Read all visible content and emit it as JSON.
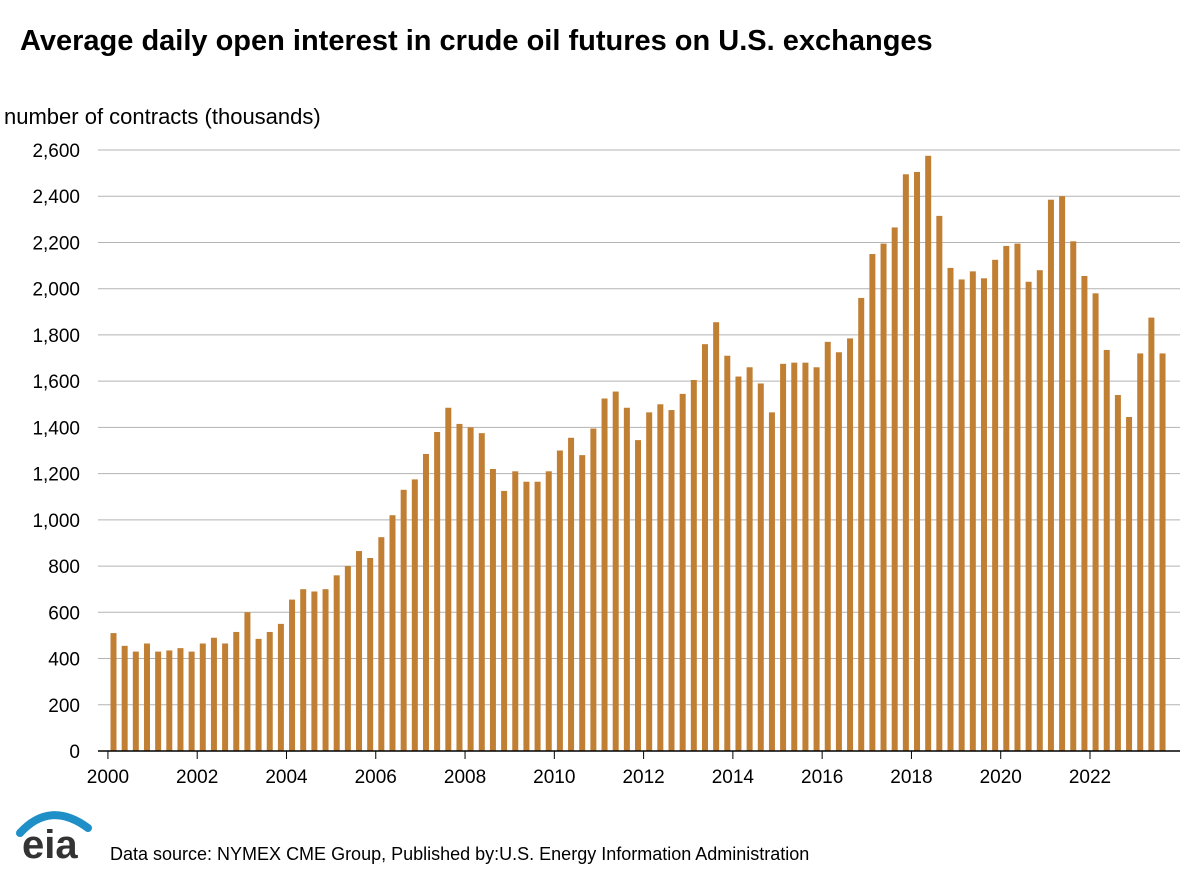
{
  "chart_data": {
    "type": "bar",
    "title": "Average daily open interest in crude oil futures on U.S. exchanges",
    "ylabel": "number of contracts (thousands)",
    "xlabel": "",
    "ylim": [
      0,
      2600
    ],
    "yticks": [
      "0",
      "200",
      "400",
      "600",
      "800",
      "1,000",
      "1,200",
      "1,400",
      "1,600",
      "1,800",
      "2,000",
      "2,200",
      "2,400",
      "2,600"
    ],
    "xticks": [
      "2000",
      "2002",
      "2004",
      "2006",
      "2008",
      "2010",
      "2012",
      "2014",
      "2016",
      "2018",
      "2020",
      "2022"
    ],
    "grid": true,
    "bar_color": "#c17f34",
    "series": [
      {
        "values": [
          510,
          455,
          430,
          465,
          430,
          435,
          445,
          430,
          465,
          490,
          465,
          515,
          600,
          485,
          515,
          550,
          655,
          700,
          690,
          700,
          760,
          800,
          865,
          835,
          925,
          1020,
          1130,
          1175,
          1285,
          1380,
          1485,
          1415,
          1400,
          1375,
          1220,
          1125,
          1210,
          1165,
          1165,
          1210,
          1300,
          1355,
          1280,
          1395,
          1525,
          1555,
          1485,
          1345,
          1465,
          1500,
          1475,
          1545,
          1605,
          1760,
          1855,
          1710,
          1620,
          1660,
          1590,
          1465,
          1675,
          1680,
          1680,
          1660,
          1770,
          1725,
          1785,
          1960,
          2150,
          2195,
          2265,
          2495,
          2505,
          2575,
          2315,
          2090,
          2040,
          2075,
          2045,
          2125,
          2185,
          2195,
          2030,
          2080,
          2385,
          2400,
          2205,
          2055,
          1980,
          1735,
          1540,
          1445,
          1720,
          1875,
          1720
        ]
      }
    ]
  },
  "source": "Data source: NYMEX CME Group, Published by:U.S. Energy Information Administration",
  "logo": {
    "text": "eia",
    "arc_color": "#1f8fc8",
    "text_color": "#333333"
  }
}
